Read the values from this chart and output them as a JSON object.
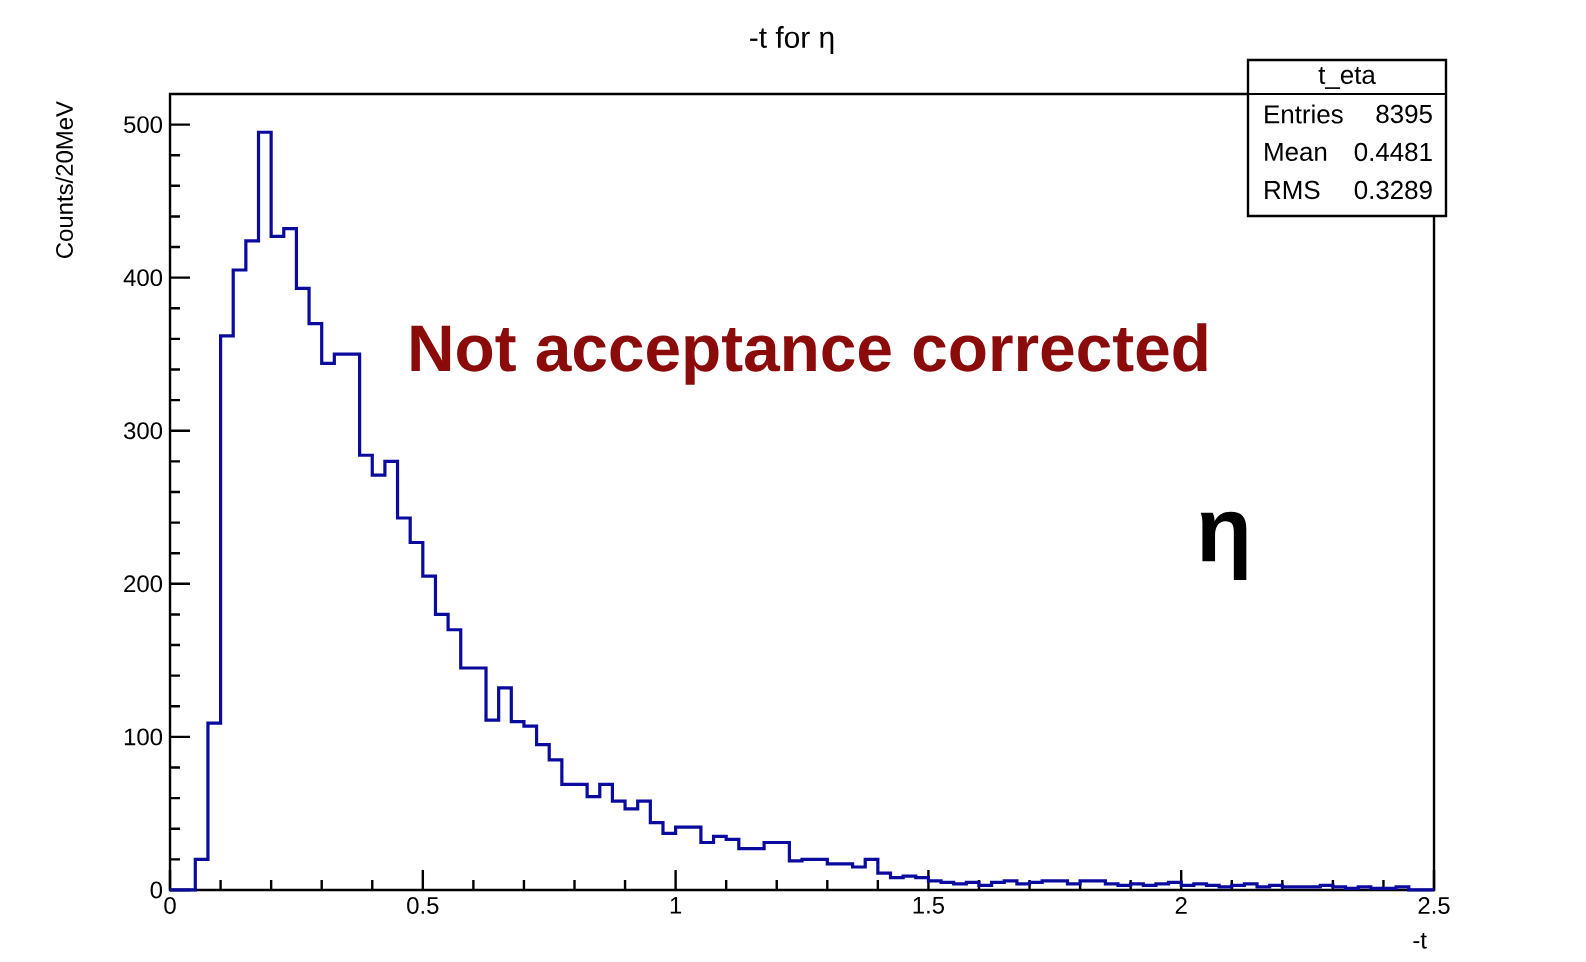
{
  "chart_data": {
    "type": "histogram",
    "title": "-t for η",
    "xlabel": "-t",
    "ylabel": "Counts/20MeV",
    "bins": [
      0,
      0.025,
      0.05,
      0.075,
      0.1,
      0.125,
      0.15,
      0.175,
      0.2,
      0.225,
      0.25,
      0.275,
      0.3,
      0.325,
      0.35,
      0.375,
      0.4,
      0.425,
      0.45,
      0.475,
      0.5,
      0.525,
      0.55,
      0.575,
      0.6,
      0.625,
      0.65,
      0.675,
      0.7,
      0.725,
      0.75,
      0.775,
      0.8,
      0.825,
      0.85,
      0.875,
      0.9,
      0.925,
      0.95,
      0.975,
      1,
      1.025,
      1.05,
      1.075,
      1.1,
      1.125,
      1.15,
      1.175,
      1.2,
      1.225,
      1.25,
      1.275,
      1.3,
      1.325,
      1.35,
      1.375,
      1.4,
      1.425,
      1.45,
      1.475,
      1.5,
      1.525,
      1.55,
      1.575,
      1.6,
      1.625,
      1.65,
      1.675,
      1.7,
      1.725,
      1.75,
      1.775,
      1.8,
      1.825,
      1.85,
      1.875,
      1.9,
      1.925,
      1.95,
      1.975,
      2,
      2.025,
      2.05,
      2.075,
      2.1,
      2.125,
      2.15,
      2.175,
      2.2,
      2.225,
      2.25,
      2.275,
      2.3,
      2.325,
      2.35,
      2.375,
      2.4,
      2.425,
      2.45,
      2.475,
      2.5
    ],
    "values": [
      0,
      0,
      20,
      109,
      362,
      405,
      424,
      495,
      427,
      432,
      393,
      370,
      344,
      350,
      350,
      284,
      271,
      280,
      243,
      227,
      205,
      180,
      170,
      145,
      145,
      111,
      132,
      110,
      107,
      95,
      85,
      69,
      69,
      61,
      69,
      58,
      53,
      58,
      44,
      37,
      41,
      41,
      31,
      35,
      33,
      27,
      27,
      31,
      31,
      19,
      20,
      20,
      17,
      17,
      15,
      20,
      11,
      8,
      9,
      8,
      6,
      5,
      4,
      5,
      3,
      5,
      6,
      4,
      5,
      6,
      6,
      4,
      6,
      6,
      4,
      3,
      4,
      3,
      4,
      5,
      3,
      4,
      3,
      2,
      3,
      4,
      2,
      3,
      2,
      2,
      2,
      3,
      2,
      1,
      2,
      1,
      1,
      2,
      0,
      0
    ],
    "color": "#0a0a9e",
    "xlim": [
      0,
      2.5
    ],
    "ylim": [
      0,
      520
    ],
    "xticks": [
      0,
      0.5,
      1,
      1.5,
      2,
      2.5
    ],
    "yticks": [
      0,
      100,
      200,
      300,
      400,
      500
    ],
    "annotations": [
      "Not acceptance corrected",
      "η",
      "t_eta",
      "Entries",
      "8395",
      "Mean",
      "0.4481",
      "RMS",
      "0.3289"
    ]
  }
}
